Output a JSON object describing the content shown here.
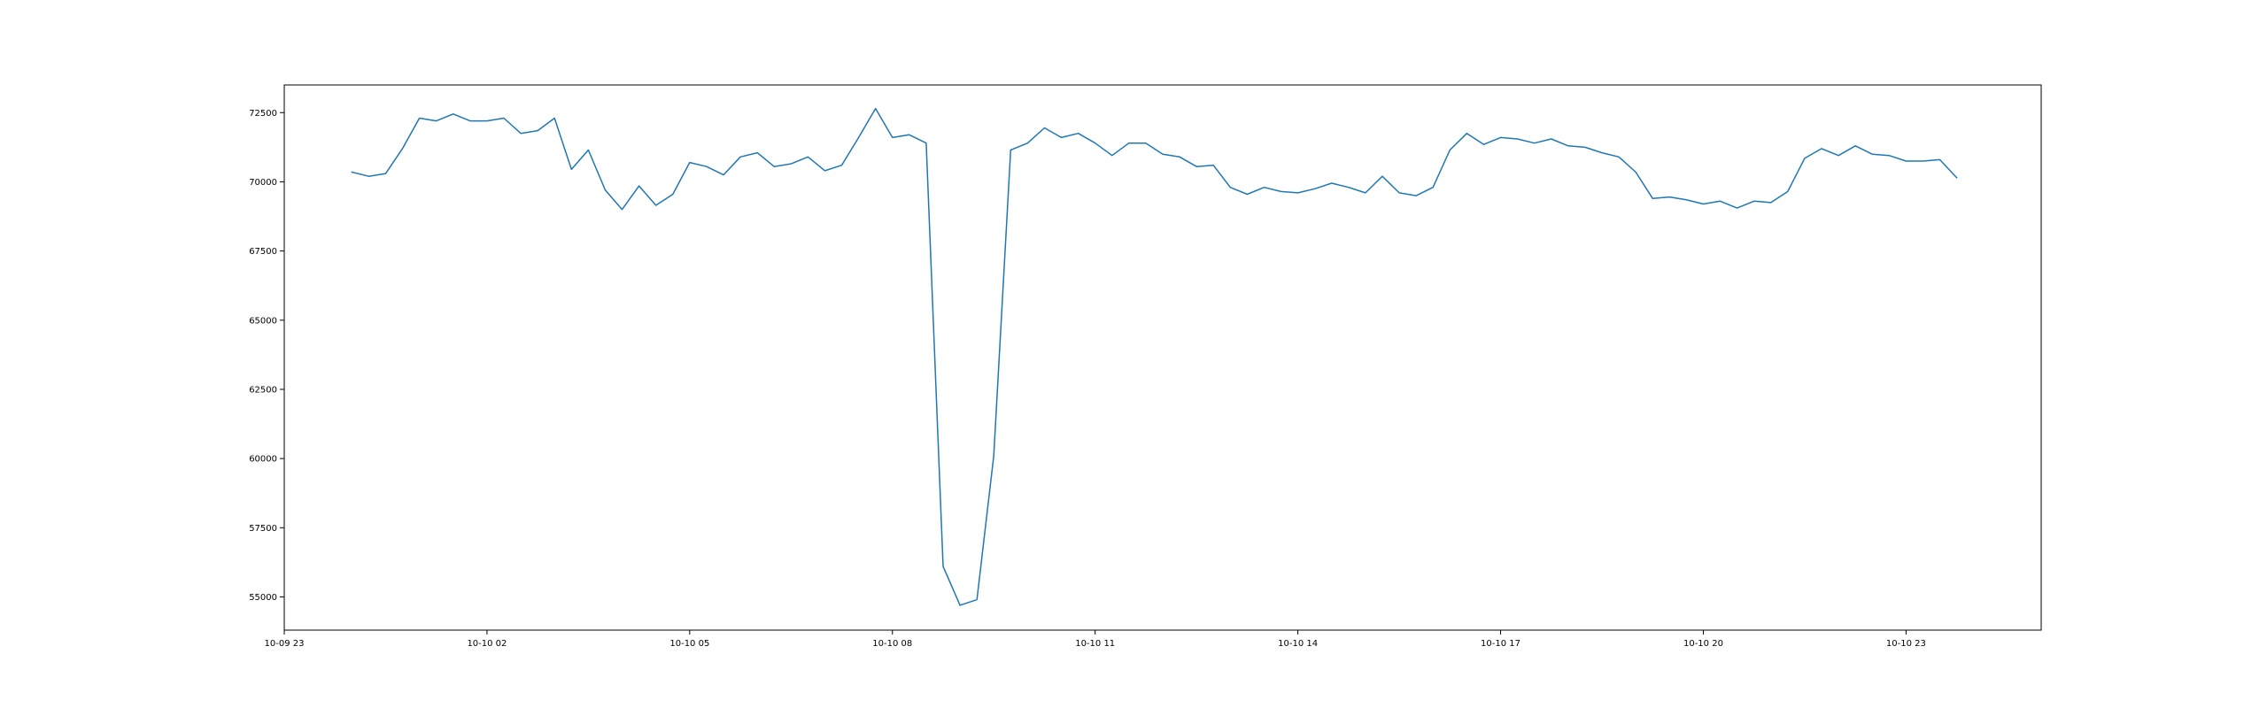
{
  "chart_data": {
    "type": "line",
    "title": "",
    "xlabel": "",
    "ylabel": "",
    "grid": false,
    "legend": "none",
    "x_axis": {
      "kind": "datetime",
      "range": [
        "2023-10-09 23:00",
        "2023-10-11 01:00"
      ],
      "tick_labels": [
        "10-09 23",
        "10-10 02",
        "10-10 05",
        "10-10 08",
        "10-10 11",
        "10-10 14",
        "10-10 17",
        "10-10 20",
        "10-10 23"
      ]
    },
    "y_axis": {
      "range": [
        53800,
        73500
      ],
      "ticks": [
        55000,
        57500,
        60000,
        62500,
        65000,
        67500,
        70000,
        72500
      ],
      "tick_labels": [
        "55000",
        "57500",
        "60000",
        "62500",
        "65000",
        "67500",
        "70000",
        "72500"
      ]
    },
    "series": [
      {
        "color": "#1f77b4",
        "x": [
          "2023-10-10 00:00",
          "2023-10-10 00:15",
          "2023-10-10 00:30",
          "2023-10-10 00:45",
          "2023-10-10 01:00",
          "2023-10-10 01:15",
          "2023-10-10 01:30",
          "2023-10-10 01:45",
          "2023-10-10 02:00",
          "2023-10-10 02:15",
          "2023-10-10 02:30",
          "2023-10-10 02:45",
          "2023-10-10 03:00",
          "2023-10-10 03:15",
          "2023-10-10 03:30",
          "2023-10-10 03:45",
          "2023-10-10 04:00",
          "2023-10-10 04:15",
          "2023-10-10 04:30",
          "2023-10-10 04:45",
          "2023-10-10 05:00",
          "2023-10-10 05:15",
          "2023-10-10 05:30",
          "2023-10-10 05:45",
          "2023-10-10 06:00",
          "2023-10-10 06:15",
          "2023-10-10 06:30",
          "2023-10-10 06:45",
          "2023-10-10 07:00",
          "2023-10-10 07:15",
          "2023-10-10 07:30",
          "2023-10-10 07:45",
          "2023-10-10 08:00",
          "2023-10-10 08:15",
          "2023-10-10 08:30",
          "2023-10-10 08:45",
          "2023-10-10 09:00",
          "2023-10-10 09:15",
          "2023-10-10 09:30",
          "2023-10-10 09:45",
          "2023-10-10 10:00",
          "2023-10-10 10:15",
          "2023-10-10 10:30",
          "2023-10-10 10:45",
          "2023-10-10 11:00",
          "2023-10-10 11:15",
          "2023-10-10 11:30",
          "2023-10-10 11:45",
          "2023-10-10 12:00",
          "2023-10-10 12:15",
          "2023-10-10 12:30",
          "2023-10-10 12:45",
          "2023-10-10 13:00",
          "2023-10-10 13:15",
          "2023-10-10 13:30",
          "2023-10-10 13:45",
          "2023-10-10 14:00",
          "2023-10-10 14:15",
          "2023-10-10 14:30",
          "2023-10-10 14:45",
          "2023-10-10 15:00",
          "2023-10-10 15:15",
          "2023-10-10 15:30",
          "2023-10-10 15:45",
          "2023-10-10 16:00",
          "2023-10-10 16:15",
          "2023-10-10 16:30",
          "2023-10-10 16:45",
          "2023-10-10 17:00",
          "2023-10-10 17:15",
          "2023-10-10 17:30",
          "2023-10-10 17:45",
          "2023-10-10 18:00",
          "2023-10-10 18:15",
          "2023-10-10 18:30",
          "2023-10-10 18:45",
          "2023-10-10 19:00",
          "2023-10-10 19:15",
          "2023-10-10 19:30",
          "2023-10-10 19:45",
          "2023-10-10 20:00",
          "2023-10-10 20:15",
          "2023-10-10 20:30",
          "2023-10-10 20:45",
          "2023-10-10 21:00",
          "2023-10-10 21:15",
          "2023-10-10 21:30",
          "2023-10-10 21:45",
          "2023-10-10 22:00",
          "2023-10-10 22:15",
          "2023-10-10 22:30",
          "2023-10-10 22:45",
          "2023-10-10 23:00",
          "2023-10-10 23:15",
          "2023-10-10 23:30",
          "2023-10-10 23:45"
        ],
        "values": [
          70350,
          70200,
          70300,
          71200,
          72300,
          72200,
          72450,
          72200,
          72200,
          72300,
          71750,
          71850,
          72300,
          70450,
          71150,
          69700,
          69000,
          69850,
          69150,
          69550,
          70700,
          70550,
          70250,
          70900,
          71050,
          70550,
          70650,
          70900,
          70400,
          70600,
          71600,
          72650,
          71600,
          71700,
          71400,
          56100,
          54700,
          54900,
          60100,
          71150,
          71400,
          71950,
          71600,
          71750,
          71400,
          70950,
          71400,
          71400,
          71000,
          70900,
          70550,
          70600,
          69800,
          69550,
          69800,
          69650,
          69600,
          69750,
          69950,
          69800,
          69600,
          70200,
          69600,
          69500,
          69800,
          71150,
          71750,
          71350,
          71600,
          71550,
          71400,
          71550,
          71300,
          71250,
          71050,
          70900,
          70350,
          69400,
          69450,
          69350,
          69200,
          69300,
          69050,
          69300,
          69250,
          69650,
          70850,
          71200,
          70950,
          71300,
          71000,
          70950,
          70750,
          70750,
          70800,
          70150
        ]
      }
    ]
  }
}
